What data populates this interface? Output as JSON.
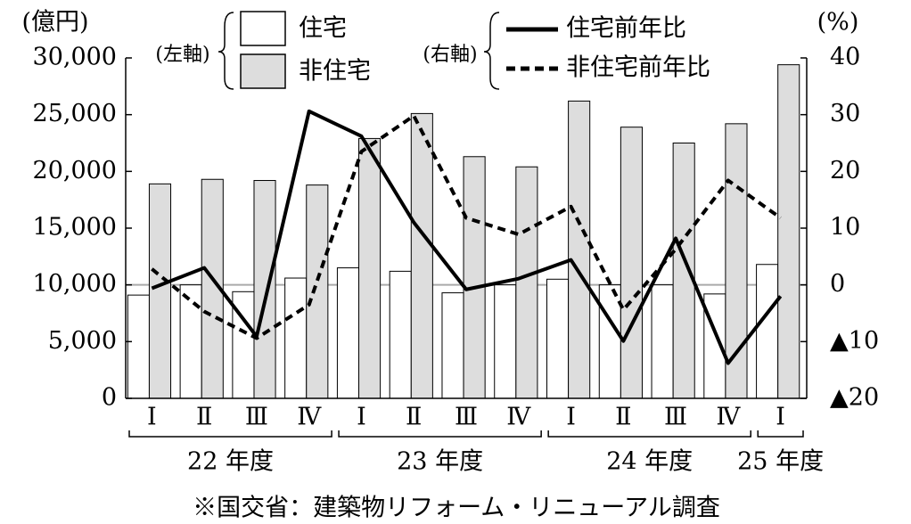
{
  "chart_data": {
    "type": "bar_line",
    "y_unit": "(億円)",
    "y2_unit": "(%)",
    "left_axis_note": "(左軸)",
    "right_axis_note": "(右軸)",
    "source": "※国交省：建築物リフォーム・リニューアル調査",
    "categories": [
      "Ⅰ",
      "Ⅱ",
      "Ⅲ",
      "Ⅳ",
      "Ⅰ",
      "Ⅱ",
      "Ⅲ",
      "Ⅳ",
      "Ⅰ",
      "Ⅱ",
      "Ⅲ",
      "Ⅳ",
      "Ⅰ"
    ],
    "groups": [
      {
        "label": "22 年度",
        "start": 0,
        "end": 3
      },
      {
        "label": "23 年度",
        "start": 4,
        "end": 7
      },
      {
        "label": "24 年度",
        "start": 8,
        "end": 11
      },
      {
        "label": "25 年度",
        "start": 12,
        "end": 12
      }
    ],
    "series": [
      {
        "name": "住宅",
        "kind": "bar",
        "color": "#ffffff",
        "values": [
          9100,
          10000,
          9400,
          10600,
          11500,
          11200,
          9300,
          10000,
          10500,
          10000,
          10000,
          9200,
          11800
        ]
      },
      {
        "name": "非住宅",
        "kind": "bar",
        "color": "#dddddd",
        "values": [
          18900,
          19300,
          19200,
          18800,
          22900,
          25100,
          21300,
          20400,
          26200,
          23900,
          22500,
          24200,
          29400
        ]
      },
      {
        "name": "住宅前年比",
        "kind": "line",
        "axis": "y2",
        "color": "#000000",
        "dash": false,
        "values": [
          -0.6,
          3.0,
          -9.1,
          30.6,
          26.2,
          11,
          -0.8,
          1.1,
          4.4,
          -9.9,
          8.2,
          -13.8,
          -2.0
        ]
      },
      {
        "name": "非住宅前年比",
        "kind": "line",
        "axis": "y2",
        "color": "#000000",
        "dash": true,
        "values": [
          2.8,
          -4.7,
          -9.4,
          -3.5,
          23.5,
          29.8,
          11.8,
          8.9,
          13.8,
          -4.4,
          6.3,
          18.4,
          11.8
        ]
      }
    ],
    "ylim": [
      0,
      30000
    ],
    "yticks": [
      0,
      {
        "value": 5000,
        "label": "5,000"
      },
      {
        "value": 10000,
        "label": "10,000"
      },
      {
        "value": 15000,
        "label": "15,000"
      },
      {
        "value": 20000,
        "label": "20,000"
      },
      {
        "value": 25000,
        "label": "25,000"
      },
      {
        "value": 30000,
        "label": "30,000"
      }
    ],
    "y2lim": [
      -20,
      40
    ],
    "y2ticks": [
      {
        "value": -20,
        "label": "▲20"
      },
      {
        "value": -10,
        "label": "▲10"
      },
      0,
      10,
      20,
      30,
      40
    ],
    "zero_line": true
  }
}
